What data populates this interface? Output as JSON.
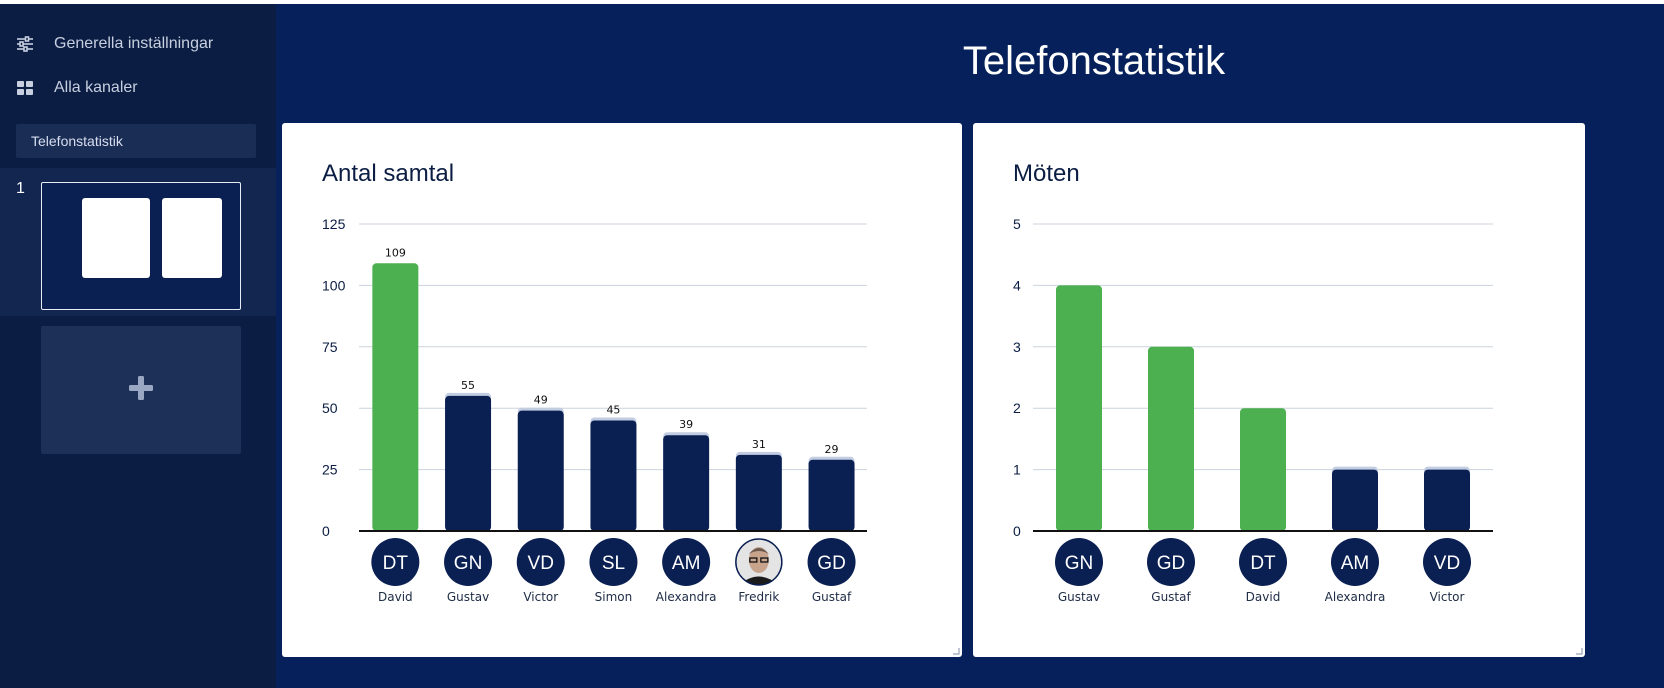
{
  "sidebar": {
    "menu": [
      {
        "label": "Generella inställningar",
        "icon": "sliders-icon"
      },
      {
        "label": "Alla kanaler",
        "icon": "grid-icon"
      }
    ],
    "search_value": "Telefonstatistik",
    "slides": [
      {
        "number": "1"
      }
    ],
    "add_slide_icon": "plus-icon"
  },
  "page": {
    "title": "Telefonstatistik"
  },
  "colors": {
    "highlight": "#4caf50",
    "bar": "#0a1f52",
    "bar_cap": "#c3cde2",
    "background": "#05205a",
    "sidebar": "#0b1d43"
  },
  "chart_data": [
    {
      "type": "bar",
      "title": "Antal samtal",
      "categories": [
        "David",
        "Gustav",
        "Victor",
        "Simon",
        "Alexandra",
        "Fredrik",
        "Gustaf"
      ],
      "initials": [
        "DT",
        "GN",
        "VD",
        "SL",
        "AM",
        "",
        "GD"
      ],
      "avatar_types": [
        "initials",
        "initials",
        "initials",
        "initials",
        "initials",
        "photo",
        "initials"
      ],
      "values": [
        109,
        55,
        49,
        45,
        39,
        31,
        29
      ],
      "data_labels": true,
      "highlighted": [
        true,
        false,
        false,
        false,
        false,
        false,
        false
      ],
      "ylim": [
        0,
        125
      ],
      "yticks": [
        0,
        25,
        50,
        75,
        100,
        125
      ],
      "xlabel": "",
      "ylabel": "",
      "grid": true
    },
    {
      "type": "bar",
      "title": "Möten",
      "categories": [
        "Gustav",
        "Gustaf",
        "David",
        "Alexandra",
        "Victor"
      ],
      "initials": [
        "GN",
        "GD",
        "DT",
        "AM",
        "VD"
      ],
      "avatar_types": [
        "initials",
        "initials",
        "initials",
        "initials",
        "initials"
      ],
      "values": [
        4,
        3,
        2,
        1,
        1
      ],
      "data_labels": false,
      "highlighted": [
        true,
        true,
        true,
        false,
        false
      ],
      "ylim": [
        0,
        5
      ],
      "yticks": [
        0,
        1,
        2,
        3,
        4,
        5
      ],
      "xlabel": "",
      "ylabel": "",
      "grid": true
    }
  ]
}
